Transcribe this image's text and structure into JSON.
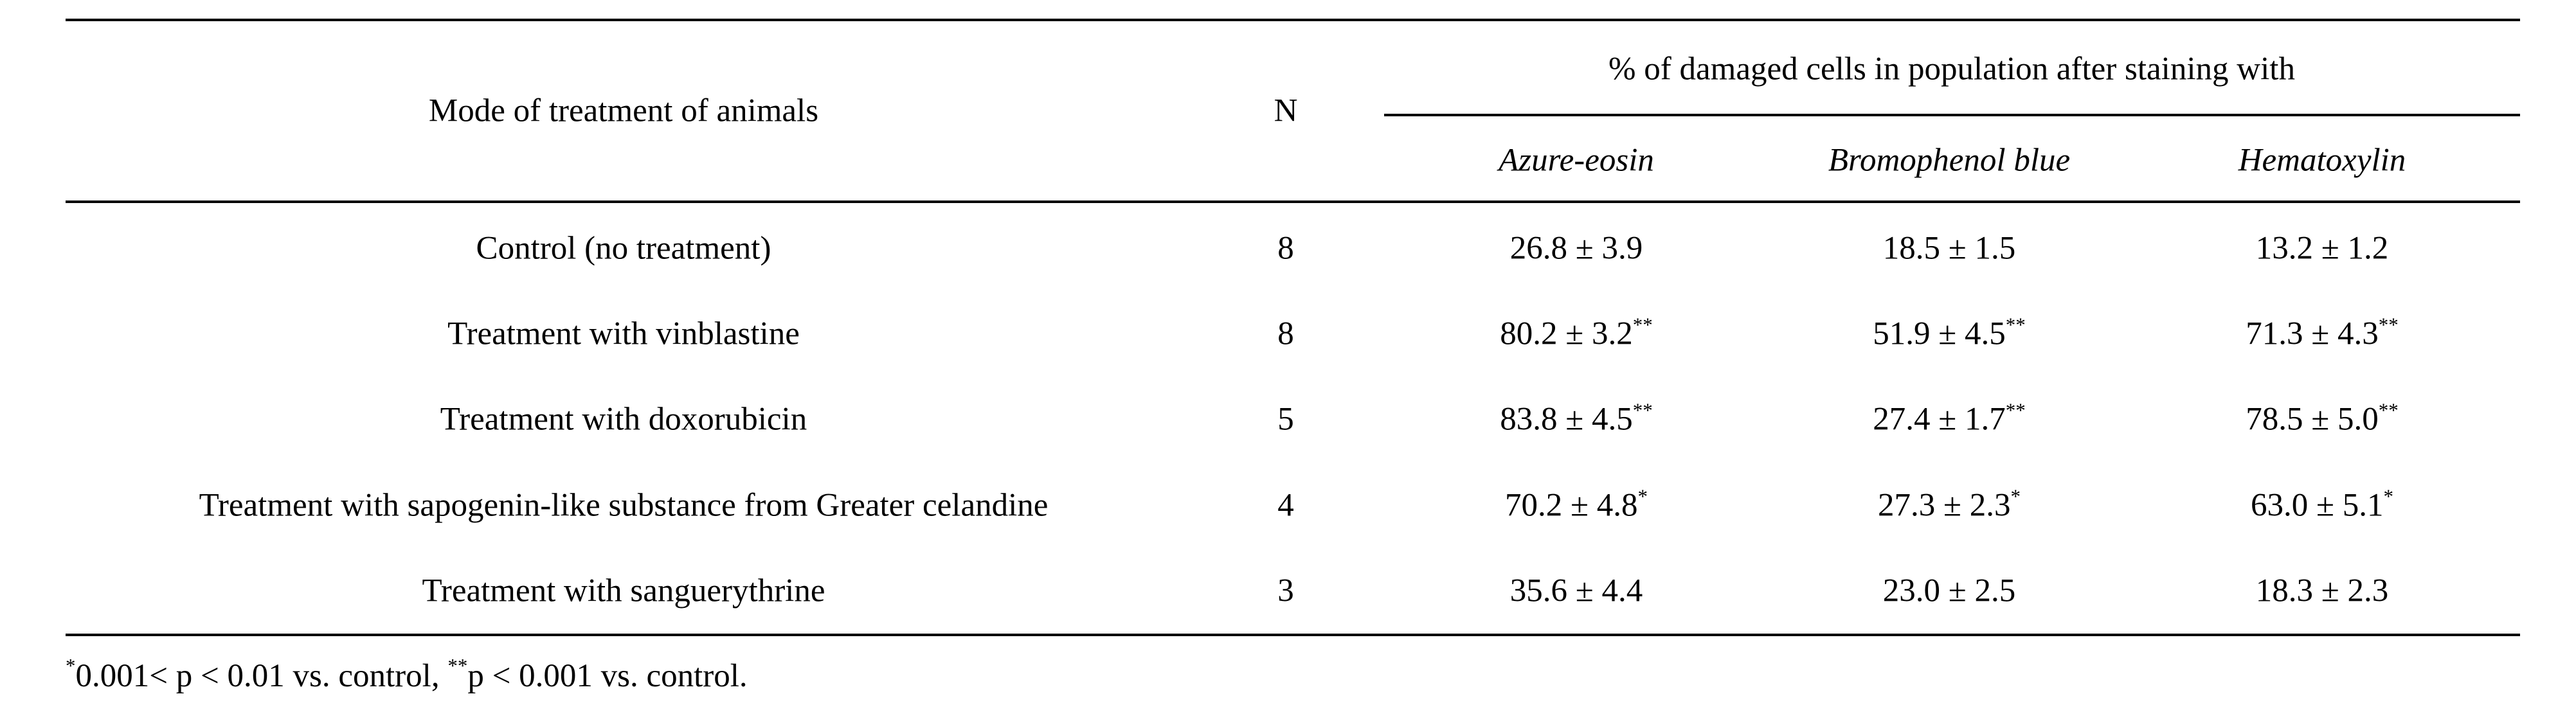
{
  "table": {
    "header": {
      "mode": "Mode of treatment of animals",
      "n": "N",
      "group": "% of damaged cells in population after staining with",
      "stains": [
        "Azure-eosin",
        "Bromophenol blue",
        "Hematoxylin"
      ]
    },
    "rows": [
      {
        "mode": "Control (no treatment)",
        "n": "8",
        "vals": [
          {
            "v": "26.8 ± 3.9",
            "sig": ""
          },
          {
            "v": "18.5 ± 1.5",
            "sig": ""
          },
          {
            "v": "13.2 ± 1.2",
            "sig": ""
          }
        ]
      },
      {
        "mode": "Treatment with vinblastine",
        "n": "8",
        "vals": [
          {
            "v": "80.2 ± 3.2",
            "sig": "**"
          },
          {
            "v": "51.9 ± 4.5",
            "sig": "**"
          },
          {
            "v": "71.3 ± 4.3",
            "sig": "**"
          }
        ]
      },
      {
        "mode": "Treatment with doxorubicin",
        "n": "5",
        "vals": [
          {
            "v": "83.8 ± 4.5",
            "sig": "**"
          },
          {
            "v": "27.4 ± 1.7",
            "sig": "**"
          },
          {
            "v": "78.5 ± 5.0",
            "sig": "**"
          }
        ]
      },
      {
        "mode": "Treatment with sapogenin-like substance from Greater celandine",
        "n": "4",
        "vals": [
          {
            "v": "70.2 ± 4.8",
            "sig": "*"
          },
          {
            "v": "27.3 ± 2.3",
            "sig": "*"
          },
          {
            "v": "63.0 ± 5.1",
            "sig": "*"
          }
        ]
      },
      {
        "mode": "Treatment with sanguerythrine",
        "n": "3",
        "vals": [
          {
            "v": "35.6 ± 4.4",
            "sig": ""
          },
          {
            "v": "23.0 ± 2.5",
            "sig": ""
          },
          {
            "v": "18.3 ± 2.3",
            "sig": ""
          }
        ]
      }
    ]
  },
  "footnote": {
    "mark1": "*",
    "text1": "0.001< p < 0.01 vs. control, ",
    "mark2": "**",
    "text2": "p < 0.001 vs. control."
  }
}
